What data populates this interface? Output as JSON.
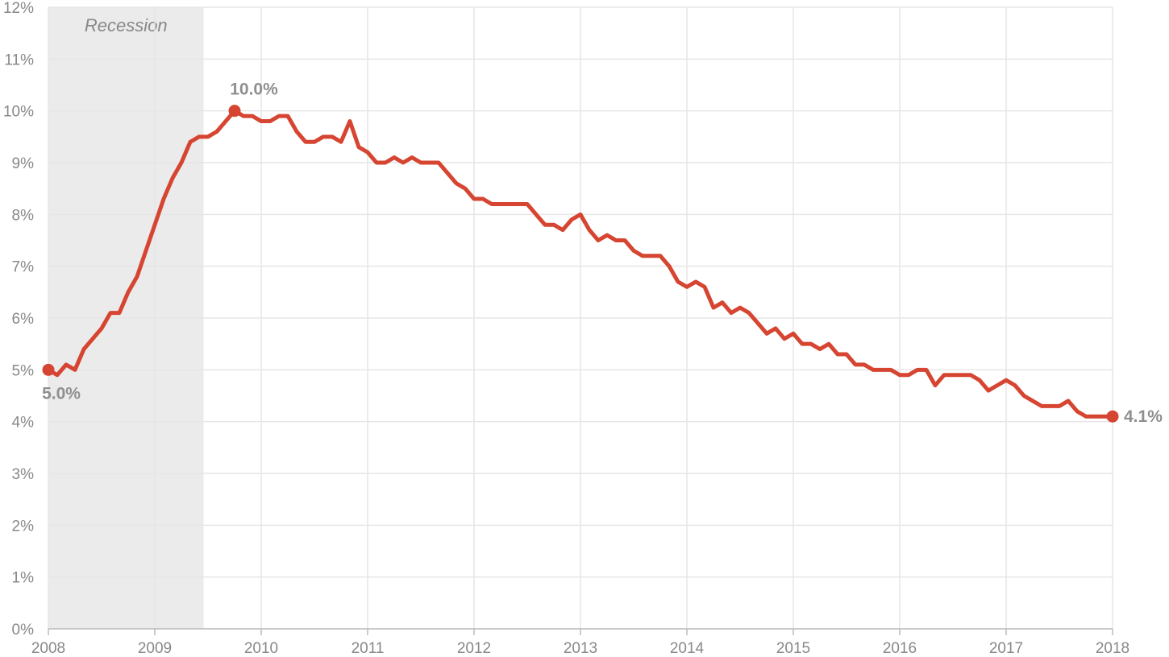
{
  "chart_data": {
    "type": "line",
    "title": "",
    "xlabel": "",
    "ylabel": "",
    "xlim": [
      "2008-01",
      "2018-01"
    ],
    "ylim": [
      0,
      12
    ],
    "grid": true,
    "y_ticks": [
      {
        "value": 0,
        "label": "0%"
      },
      {
        "value": 1,
        "label": "1%"
      },
      {
        "value": 2,
        "label": "2%"
      },
      {
        "value": 3,
        "label": "3%"
      },
      {
        "value": 4,
        "label": "4%"
      },
      {
        "value": 5,
        "label": "5%"
      },
      {
        "value": 6,
        "label": "6%"
      },
      {
        "value": 7,
        "label": "7%"
      },
      {
        "value": 8,
        "label": "8%"
      },
      {
        "value": 9,
        "label": "9%"
      },
      {
        "value": 10,
        "label": "10%"
      },
      {
        "value": 11,
        "label": "11%"
      },
      {
        "value": 12,
        "label": "12%"
      }
    ],
    "x_ticks": [
      {
        "value": "2008-01",
        "label": "2008"
      },
      {
        "value": "2009-01",
        "label": "2009"
      },
      {
        "value": "2010-01",
        "label": "2010"
      },
      {
        "value": "2011-01",
        "label": "2011"
      },
      {
        "value": "2012-01",
        "label": "2012"
      },
      {
        "value": "2013-01",
        "label": "2013"
      },
      {
        "value": "2014-01",
        "label": "2014"
      },
      {
        "value": "2015-01",
        "label": "2015"
      },
      {
        "value": "2016-01",
        "label": "2016"
      },
      {
        "value": "2017-01",
        "label": "2017"
      },
      {
        "value": "2018-01",
        "label": "2018"
      }
    ],
    "recession": {
      "label": "Recession",
      "start": "2008-01",
      "end": "2009-06",
      "color": "#ebebeb"
    },
    "series": [
      {
        "color": "#d64531",
        "x": [
          "2008-01",
          "2008-02",
          "2008-03",
          "2008-04",
          "2008-05",
          "2008-06",
          "2008-07",
          "2008-08",
          "2008-09",
          "2008-10",
          "2008-11",
          "2008-12",
          "2009-01",
          "2009-02",
          "2009-03",
          "2009-04",
          "2009-05",
          "2009-06",
          "2009-07",
          "2009-08",
          "2009-09",
          "2009-10",
          "2009-11",
          "2009-12",
          "2010-01",
          "2010-02",
          "2010-03",
          "2010-04",
          "2010-05",
          "2010-06",
          "2010-07",
          "2010-08",
          "2010-09",
          "2010-10",
          "2010-11",
          "2010-12",
          "2011-01",
          "2011-02",
          "2011-03",
          "2011-04",
          "2011-05",
          "2011-06",
          "2011-07",
          "2011-08",
          "2011-09",
          "2011-10",
          "2011-11",
          "2011-12",
          "2012-01",
          "2012-02",
          "2012-03",
          "2012-04",
          "2012-05",
          "2012-06",
          "2012-07",
          "2012-08",
          "2012-09",
          "2012-10",
          "2012-11",
          "2012-12",
          "2013-01",
          "2013-02",
          "2013-03",
          "2013-04",
          "2013-05",
          "2013-06",
          "2013-07",
          "2013-08",
          "2013-09",
          "2013-10",
          "2013-11",
          "2013-12",
          "2014-01",
          "2014-02",
          "2014-03",
          "2014-04",
          "2014-05",
          "2014-06",
          "2014-07",
          "2014-08",
          "2014-09",
          "2014-10",
          "2014-11",
          "2014-12",
          "2015-01",
          "2015-02",
          "2015-03",
          "2015-04",
          "2015-05",
          "2015-06",
          "2015-07",
          "2015-08",
          "2015-09",
          "2015-10",
          "2015-11",
          "2015-12",
          "2016-01",
          "2016-02",
          "2016-03",
          "2016-04",
          "2016-05",
          "2016-06",
          "2016-07",
          "2016-08",
          "2016-09",
          "2016-10",
          "2016-11",
          "2016-12",
          "2017-01",
          "2017-02",
          "2017-03",
          "2017-04",
          "2017-05",
          "2017-06",
          "2017-07",
          "2017-08",
          "2017-09",
          "2017-10",
          "2017-11",
          "2017-12",
          "2018-01"
        ],
        "values": [
          5.0,
          4.9,
          5.1,
          5.0,
          5.4,
          5.6,
          5.8,
          6.1,
          6.1,
          6.5,
          6.8,
          7.3,
          7.8,
          8.3,
          8.7,
          9.0,
          9.4,
          9.5,
          9.5,
          9.6,
          9.8,
          10.0,
          9.9,
          9.9,
          9.8,
          9.8,
          9.9,
          9.9,
          9.6,
          9.4,
          9.4,
          9.5,
          9.5,
          9.4,
          9.8,
          9.3,
          9.2,
          9.0,
          9.0,
          9.1,
          9.0,
          9.1,
          9.0,
          9.0,
          9.0,
          8.8,
          8.6,
          8.5,
          8.3,
          8.3,
          8.2,
          8.2,
          8.2,
          8.2,
          8.2,
          8.0,
          7.8,
          7.8,
          7.7,
          7.9,
          8.0,
          7.7,
          7.5,
          7.6,
          7.5,
          7.5,
          7.3,
          7.2,
          7.2,
          7.2,
          7.0,
          6.7,
          6.6,
          6.7,
          6.6,
          6.2,
          6.3,
          6.1,
          6.2,
          6.1,
          5.9,
          5.7,
          5.8,
          5.6,
          5.7,
          5.5,
          5.5,
          5.4,
          5.5,
          5.3,
          5.3,
          5.1,
          5.1,
          5.0,
          5.0,
          5.0,
          4.9,
          4.9,
          5.0,
          5.0,
          4.7,
          4.9,
          4.9,
          4.9,
          4.9,
          4.8,
          4.6,
          4.7,
          4.8,
          4.7,
          4.5,
          4.4,
          4.3,
          4.3,
          4.3,
          4.4,
          4.2,
          4.1,
          4.1,
          4.1,
          4.1
        ]
      }
    ],
    "annotations": [
      {
        "x": "2008-01",
        "y": 5.0,
        "label": "5.0%",
        "placement": "below"
      },
      {
        "x": "2009-10",
        "y": 10.0,
        "label": "10.0%",
        "placement": "above"
      },
      {
        "x": "2018-01",
        "y": 4.1,
        "label": "4.1%",
        "placement": "right"
      }
    ]
  }
}
